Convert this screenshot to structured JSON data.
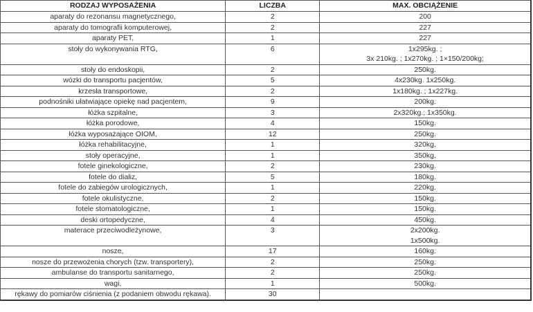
{
  "headers": {
    "type": "RODZAJ WYPOSAŻENIA",
    "count": "LICZBA",
    "load": "MAX. OBCIĄŻENIE"
  },
  "rows": [
    {
      "type": "aparaty do rezonansu magnetycznego,",
      "count": "2",
      "load": [
        "200"
      ]
    },
    {
      "type": "aparaty do tomografii komputerowej,",
      "count": "2",
      "load": [
        "227"
      ]
    },
    {
      "type": "aparaty PET,",
      "count": "1",
      "load": [
        "227"
      ]
    },
    {
      "type": "stoły do wykonywania RTG,",
      "count": "6",
      "load": [
        "1x295kg. ;",
        "3x 210kg. ;  1x270kg. ; 1×150/200kg;"
      ]
    },
    {
      "type": "stoły do endoskopii,",
      "count": "2",
      "load": [
        "250kg."
      ]
    },
    {
      "type": "wózki do transportu pacjentów,",
      "count": "5",
      "load": [
        "4x230kg.  1x250kg."
      ]
    },
    {
      "type": "krzesła transportowe,",
      "count": "2",
      "load": [
        "1x180kg. ; 1x227kg."
      ]
    },
    {
      "type": "podnośniki ułatwiające opiekę nad pacjentem,",
      "count": "9",
      "load": [
        "200kg."
      ]
    },
    {
      "type": "łóżka szpitalne,",
      "count": "3",
      "load": [
        "2x320kg.; 1x350kg."
      ]
    },
    {
      "type": "łóżka porodowe,",
      "count": "4",
      "load": [
        "150kg."
      ]
    },
    {
      "type": "łóżka wyposażające OIOM,",
      "count": "12",
      "load": [
        "250kg."
      ]
    },
    {
      "type": "łóżka rehabilitacyjne,",
      "count": "1",
      "load": [
        "320kg."
      ]
    },
    {
      "type": "stoły operacyjne,",
      "count": "1",
      "load": [
        "350kg."
      ]
    },
    {
      "type": "fotele ginekologiczne,",
      "count": "2",
      "load": [
        "230kg."
      ]
    },
    {
      "type": "fotele do dializ,",
      "count": "5",
      "load": [
        "180kg."
      ]
    },
    {
      "type": "fotele do zabiegów urologicznych,",
      "count": "1",
      "load": [
        "220kg."
      ]
    },
    {
      "type": "fotele okulistyczne,",
      "count": "2",
      "load": [
        "150kg."
      ]
    },
    {
      "type": "fotele stomatologiczne,",
      "count": "1",
      "load": [
        "150kg."
      ]
    },
    {
      "type": "deski ortopedyczne,",
      "count": "4",
      "load": [
        "450kg."
      ]
    },
    {
      "type": "materace przeciwodleżynowe,",
      "count": "3",
      "load": [
        "2x200kg.",
        "1x500kg."
      ]
    },
    {
      "type": "nosze,",
      "count": "17",
      "load": [
        "160kg."
      ]
    },
    {
      "type": "nosze do przewożenia chorych (tzw. transportery),",
      "count": "2",
      "load": [
        "250kg."
      ]
    },
    {
      "type": "ambulanse do transportu sanitarnego,",
      "count": "2",
      "load": [
        "250kg."
      ]
    },
    {
      "type": "wagi,",
      "count": "1",
      "load": [
        "500kg."
      ]
    },
    {
      "type": "rękawy do pomiarów ciśnienia (z podaniem obwodu rękawa).",
      "count": "30",
      "load": [
        ""
      ]
    }
  ]
}
